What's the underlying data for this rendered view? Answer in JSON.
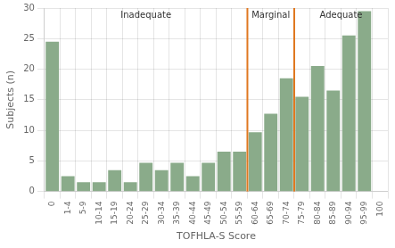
{
  "chart_data": {
    "type": "bar",
    "categories": [
      "0",
      "1-4",
      "5-9",
      "10-14",
      "15-19",
      "20-24",
      "25-29",
      "30-34",
      "35-39",
      "40-44",
      "45-49",
      "50-54",
      "55-59",
      "60-64",
      "65-69",
      "70-74",
      "75-79",
      "80-84",
      "85-89",
      "90-94",
      "95-99",
      "100"
    ],
    "values": [
      24.5,
      2.5,
      1.5,
      1.5,
      3.5,
      1.5,
      4.7,
      3.5,
      4.7,
      2.5,
      4.7,
      6.5,
      6.5,
      9.7,
      12.7,
      18.5,
      15.5,
      20.5,
      16.5,
      25.5,
      29.5,
      0
    ],
    "color": "#8aab8a",
    "xlabel": "TOFHLA-S Score",
    "ylabel": "Subjects (n)",
    "ylim": [
      0,
      30
    ],
    "yticks": [
      0,
      5,
      10,
      15,
      20,
      25,
      30
    ],
    "grid": true,
    "vlines": [
      {
        "after": "55-59",
        "color": "#e07820"
      },
      {
        "after": "70-74",
        "color": "#e07820"
      }
    ],
    "annotations": [
      {
        "text": "Inadequate",
        "y": 29.5
      },
      {
        "text": "Marginal",
        "y": 29.5
      },
      {
        "text": "Adequate",
        "y": 29.5
      }
    ]
  }
}
